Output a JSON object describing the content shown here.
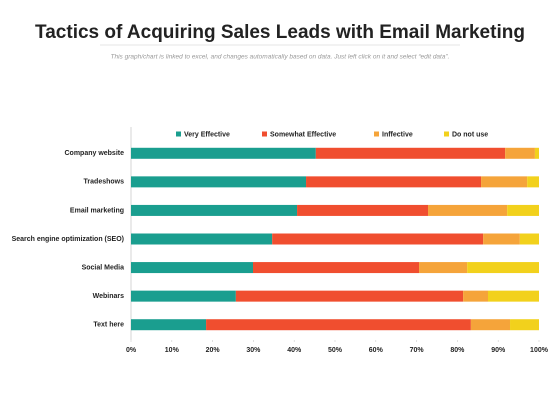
{
  "chart_data": {
    "type": "stacked-barh",
    "title": "Tactics of Acquiring Sales Leads with Email Marketing",
    "subtitle": "This graph/chart is linked to excel, and changes automatically based on data. Just left click on it and select “edit data”.",
    "categories": [
      "Company website",
      "Tradeshows",
      "Email marketing",
      "Search engine optimization (SEO)",
      "Social Media",
      "Webinars",
      "Text here"
    ],
    "series": [
      {
        "name": "Very Effective",
        "color": "#1a9e8f",
        "values": [
          45.3,
          42.9,
          40.7,
          34.6,
          29.9,
          25.7,
          18.4
        ]
      },
      {
        "name": "Somewhat Effective",
        "color": "#f04e2f",
        "values": [
          46.4,
          42.9,
          32.1,
          51.7,
          40.7,
          55.7,
          64.9
        ]
      },
      {
        "name": "Inffective",
        "color": "#f5a43a",
        "values": [
          7.3,
          11.3,
          19.4,
          9.0,
          11.8,
          6.1,
          9.6
        ]
      },
      {
        "name": "Do not use",
        "color": "#f2d11c",
        "values": [
          1.0,
          2.9,
          7.8,
          4.7,
          17.6,
          12.5,
          7.1
        ]
      }
    ],
    "xlim": [
      0,
      100
    ],
    "xticks": [
      {
        "value": 0,
        "label": "0%"
      },
      {
        "value": 10,
        "label": "10%"
      },
      {
        "value": 20,
        "label": "20%"
      },
      {
        "value": 30,
        "label": "30%"
      },
      {
        "value": 40,
        "label": "40%"
      },
      {
        "value": 50,
        "label": "50%"
      },
      {
        "value": 60,
        "label": "60%"
      },
      {
        "value": 70,
        "label": "70%"
      },
      {
        "value": 80,
        "label": "80%"
      },
      {
        "value": 90,
        "label": "90%"
      },
      {
        "value": 100,
        "label": "100%"
      }
    ],
    "legend": "top"
  }
}
